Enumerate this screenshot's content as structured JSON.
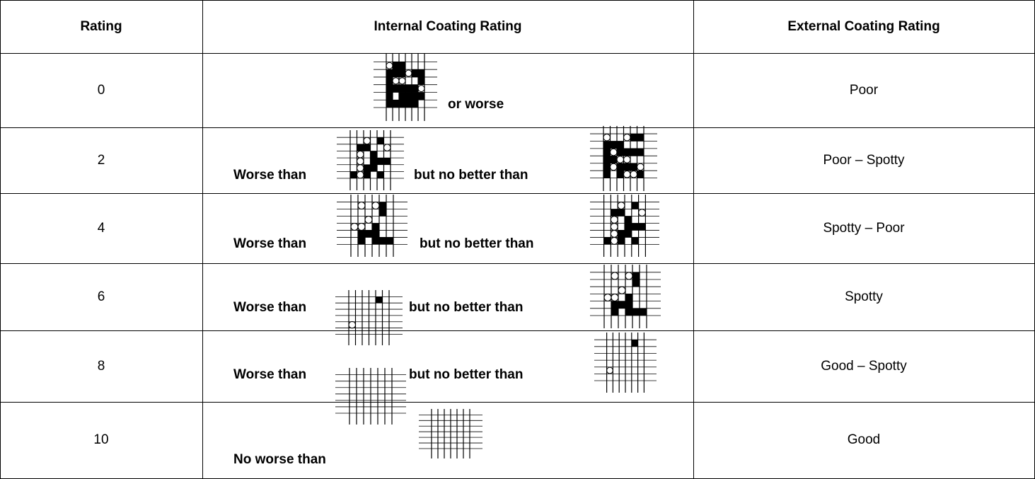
{
  "table": {
    "headers": [
      "Rating",
      "Internal Coating Rating",
      "External Coating Rating"
    ],
    "rows": [
      {
        "rating": 0,
        "internal": [
          "or worse"
        ],
        "external": "Poor"
      },
      {
        "rating": 2,
        "internal": [
          "Worse than",
          "but no better than"
        ],
        "external": "Poor – Spotty"
      },
      {
        "rating": 4,
        "internal": [
          "Worse than",
          "but no better than"
        ],
        "external": "Spotty – Poor"
      },
      {
        "rating": 6,
        "internal": [
          "Worse than",
          "but no better than"
        ],
        "external": "Spotty"
      },
      {
        "rating": 8,
        "internal": [
          "Worse than",
          "but no better than"
        ],
        "external": "Good – Spotty"
      },
      {
        "rating": 10,
        "internal": [
          "No worse than"
        ],
        "external": "Good"
      }
    ]
  }
}
